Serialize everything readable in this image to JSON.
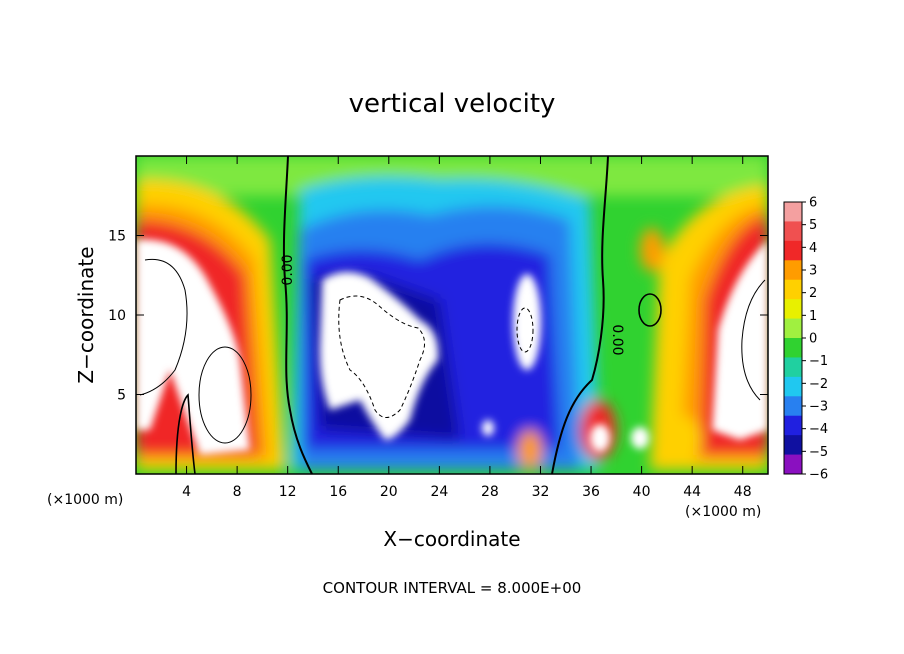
{
  "chart_data": {
    "type": "heatmap",
    "title": "vertical velocity",
    "xlabel": "X−coordinate",
    "ylabel": "Z−coordinate",
    "x_unit": "(×1000 m)",
    "x_unit_right": "(×1000 m)",
    "xlim": [
      0,
      50
    ],
    "ylim": [
      0,
      20
    ],
    "x_ticks": [
      4,
      8,
      12,
      16,
      20,
      24,
      28,
      32,
      36,
      40,
      44,
      48
    ],
    "y_ticks": [
      5,
      10,
      15
    ],
    "colorbar": {
      "levels": [
        6,
        5,
        4,
        3,
        2,
        1,
        0,
        -1,
        -2,
        -3,
        -4,
        -5,
        -6
      ],
      "labels": [
        "6",
        "5",
        "4",
        "3",
        "2",
        "1",
        "0",
        "−1",
        "−2",
        "−3",
        "−4",
        "−5",
        "−6"
      ],
      "colors_top_to_bottom": [
        "#f4a0a0",
        "#f05050",
        "#f02828",
        "#ff9c00",
        "#ffd000",
        "#e8f000",
        "#a0f040",
        "#30d230",
        "#20d0a0",
        "#20c8f0",
        "#2880f0",
        "#2020e0",
        "#1010a0",
        "#8a10c0"
      ]
    },
    "contour_labels": [
      "0.00",
      "0.00"
    ],
    "footer": "CONTOUR INTERVAL = 8.000E+00"
  }
}
